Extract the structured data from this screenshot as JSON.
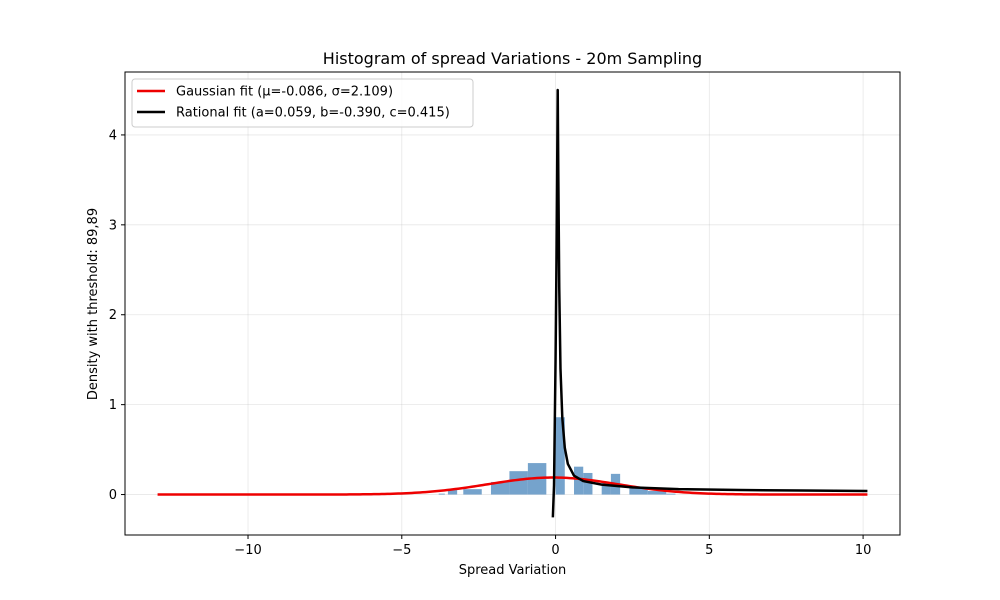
{
  "chart_data": {
    "type": "histogram",
    "title": "Histogram of spread Variations - 20m Sampling",
    "xlabel": "Spread Variation",
    "ylabel": "Density with threshold: 89,89",
    "xlim": [
      -14.0,
      11.2
    ],
    "ylim": [
      -0.45,
      4.7
    ],
    "x_ticks": [
      -10,
      -5,
      0,
      5,
      10
    ],
    "y_ticks": [
      0,
      1,
      2,
      3,
      4
    ],
    "x_tick_labels": [
      "−10",
      "−5",
      "0",
      "5",
      "10"
    ],
    "y_tick_labels": [
      "0",
      "1",
      "2",
      "3",
      "4"
    ],
    "grid": true,
    "legend_position": "upper-left",
    "histogram": {
      "color": "#6699c7",
      "bins": [
        {
          "x0": -3.8,
          "x1": -3.6,
          "value": 0.01
        },
        {
          "x0": -3.5,
          "x1": -3.2,
          "value": 0.05
        },
        {
          "x0": -3.0,
          "x1": -2.4,
          "value": 0.06
        },
        {
          "x0": -2.1,
          "x1": -1.5,
          "value": 0.14
        },
        {
          "x0": -1.5,
          "x1": -0.9,
          "value": 0.26
        },
        {
          "x0": -0.9,
          "x1": -0.3,
          "value": 0.35
        },
        {
          "x0": 0.0,
          "x1": 0.3,
          "value": 0.86
        },
        {
          "x0": 0.6,
          "x1": 0.9,
          "value": 0.31
        },
        {
          "x0": 0.9,
          "x1": 1.2,
          "value": 0.24
        },
        {
          "x0": 1.5,
          "x1": 1.8,
          "value": 0.14
        },
        {
          "x0": 1.8,
          "x1": 2.1,
          "value": 0.23
        },
        {
          "x0": 2.4,
          "x1": 3.0,
          "value": 0.08
        },
        {
          "x0": 3.0,
          "x1": 3.6,
          "value": 0.04
        },
        {
          "x0": 3.6,
          "x1": 3.9,
          "value": 0.01
        }
      ]
    },
    "series": [
      {
        "name": "Gaussian fit (μ=-0.086, σ=2.109)",
        "kind": "gaussian",
        "color": "#ee0000",
        "mu": -0.086,
        "sigma": 2.109,
        "x_range": [
          -12.9,
          10.1
        ]
      },
      {
        "name": "Rational fit (a=0.059, b=-0.390, c=0.415)",
        "kind": "rational",
        "color": "#000000",
        "x_range": [
          -0.086,
          10.1
        ],
        "points": [
          [
            -0.086,
            -0.24
          ],
          [
            -0.05,
            0.1
          ],
          [
            0.0,
            1.5
          ],
          [
            0.03,
            2.6
          ],
          [
            0.05,
            3.5
          ],
          [
            0.07,
            4.5
          ],
          [
            0.09,
            3.55
          ],
          [
            0.12,
            2.3
          ],
          [
            0.16,
            1.4
          ],
          [
            0.22,
            0.85
          ],
          [
            0.3,
            0.52
          ],
          [
            0.4,
            0.34
          ],
          [
            0.6,
            0.21
          ],
          [
            0.9,
            0.15
          ],
          [
            1.5,
            0.11
          ],
          [
            2.5,
            0.08
          ],
          [
            4.0,
            0.06
          ],
          [
            6.0,
            0.05
          ],
          [
            8.0,
            0.045
          ],
          [
            10.1,
            0.04
          ]
        ]
      }
    ]
  }
}
